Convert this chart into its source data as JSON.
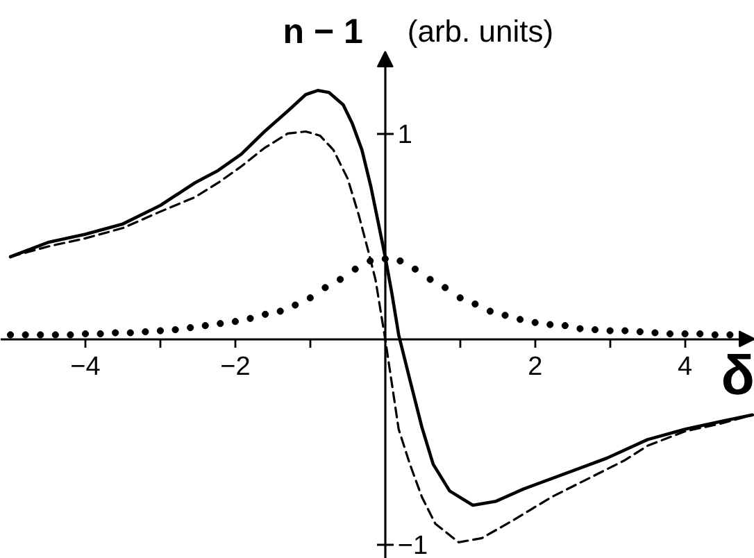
{
  "chart_data": {
    "type": "line",
    "xlabel": "δ",
    "ylabel": "n − 1",
    "annotations": [
      "(arb. units)"
    ],
    "xlim": [
      -5.13,
      4.93
    ],
    "ylim": [
      -1.07,
      1.4
    ],
    "xticks": [
      {
        "value": -4,
        "label": "−4"
      },
      {
        "value": -3,
        "label": null
      },
      {
        "value": -2,
        "label": "−2"
      },
      {
        "value": -1,
        "label": null
      },
      {
        "value": 1,
        "label": null
      },
      2,
      {
        "value": 3,
        "label": null
      },
      4
    ],
    "yticks": [
      1,
      {
        "value": -1,
        "label": "−1"
      }
    ],
    "grid": false,
    "series": [
      {
        "type": "line",
        "color": "#000000",
        "line_style": "solid",
        "x": [
          -5.0,
          -4.5,
          -4.0,
          -3.5,
          -3.0,
          -2.54,
          -2.23,
          -1.92,
          -1.61,
          -1.3,
          -1.06,
          -0.9,
          -0.75,
          -0.56,
          -0.44,
          -0.31,
          -0.19,
          -0.1,
          0,
          0.09,
          0.18,
          0.33,
          0.49,
          0.64,
          0.86,
          1.17,
          1.48,
          1.85,
          2.22,
          2.59,
          2.96,
          3.5,
          4.0,
          4.5,
          4.9
        ],
        "values": [
          0.4,
          0.47,
          0.51,
          0.56,
          0.65,
          0.76,
          0.82,
          0.9,
          1.01,
          1.11,
          1.19,
          1.21,
          1.2,
          1.14,
          1.05,
          0.92,
          0.74,
          0.58,
          0.4,
          0.22,
          0.02,
          -0.2,
          -0.43,
          -0.61,
          -0.74,
          -0.81,
          -0.79,
          -0.73,
          -0.68,
          -0.63,
          -0.58,
          -0.49,
          -0.44,
          -0.4,
          -0.37
        ]
      },
      {
        "type": "line",
        "color": "#000000",
        "line_style": "dashed",
        "x": [
          -5.0,
          -4.5,
          -4.0,
          -3.5,
          -3.0,
          -2.54,
          -2.23,
          -1.92,
          -1.61,
          -1.3,
          -1.06,
          -0.87,
          -0.69,
          -0.5,
          -0.35,
          -0.22,
          -0.13,
          0,
          0.18,
          0.33,
          0.49,
          0.67,
          0.98,
          1.29,
          1.72,
          2.22,
          2.71,
          3.2,
          3.5,
          4.0,
          4.5,
          4.9
        ],
        "values": [
          0.4,
          0.45,
          0.49,
          0.54,
          0.62,
          0.69,
          0.76,
          0.84,
          0.93,
          1.0,
          1.01,
          0.99,
          0.92,
          0.78,
          0.6,
          0.42,
          0.29,
          0,
          -0.44,
          -0.61,
          -0.77,
          -0.9,
          -0.99,
          -0.97,
          -0.88,
          -0.77,
          -0.68,
          -0.59,
          -0.52,
          -0.45,
          -0.41,
          -0.37
        ]
      },
      {
        "type": "scatter",
        "color": "#000000",
        "marker": "circle",
        "x": [
          -5.0,
          -4.8,
          -4.6,
          -4.4,
          -4.2,
          -4.0,
          -3.8,
          -3.6,
          -3.4,
          -3.2,
          -3.0,
          -2.8,
          -2.6,
          -2.4,
          -2.2,
          -2.0,
          -1.8,
          -1.6,
          -1.4,
          -1.2,
          -1.0,
          -0.8,
          -0.6,
          -0.4,
          -0.2,
          0,
          0.2,
          0.4,
          0.6,
          0.8,
          1.0,
          1.2,
          1.4,
          1.6,
          1.8,
          2.0,
          2.2,
          2.4,
          2.6,
          2.8,
          3.0,
          3.2,
          3.4,
          3.6,
          3.8,
          4.0,
          4.2,
          4.4,
          4.6
        ],
        "values": [
          0.02,
          0.02,
          0.02,
          0.02,
          0.02,
          0.025,
          0.025,
          0.03,
          0.03,
          0.035,
          0.04,
          0.045,
          0.055,
          0.065,
          0.075,
          0.085,
          0.1,
          0.12,
          0.135,
          0.165,
          0.2,
          0.25,
          0.29,
          0.34,
          0.38,
          0.39,
          0.38,
          0.34,
          0.29,
          0.25,
          0.2,
          0.17,
          0.135,
          0.115,
          0.095,
          0.08,
          0.07,
          0.065,
          0.05,
          0.045,
          0.04,
          0.04,
          0.035,
          0.03,
          0.025,
          0.025,
          0.025,
          0.02,
          0.02
        ]
      }
    ]
  }
}
